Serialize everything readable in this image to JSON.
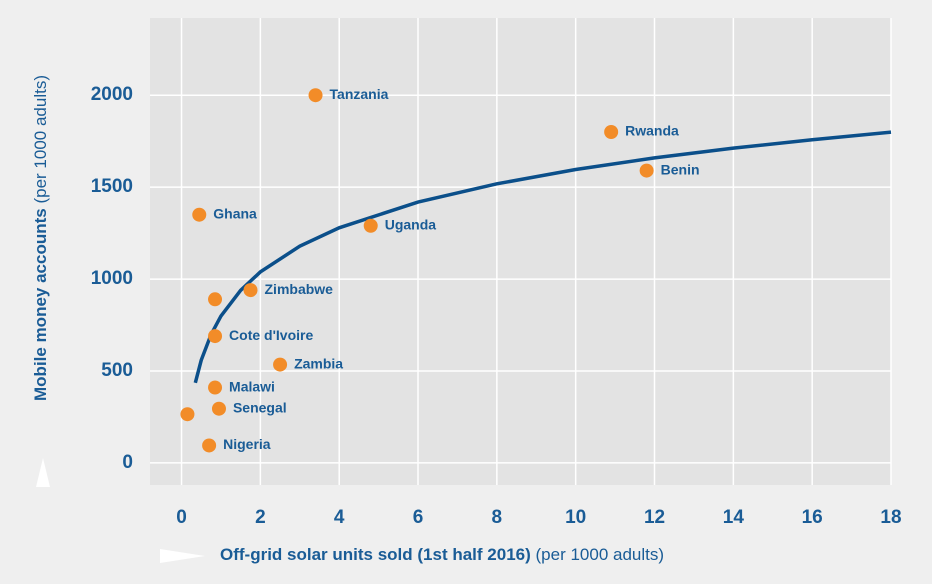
{
  "chart_data": {
    "type": "scatter",
    "x_label": "Off-grid solar units sold (1st half 2016)",
    "x_unit": "(per 1000 adults)",
    "y_label": "Mobile money accounts",
    "y_unit": "(per 1000 adults)",
    "labels": [
      "Tanzania",
      "Rwanda",
      "Benin",
      "Ghana",
      "Uganda",
      "Zimbabwe",
      null,
      "Cote d'Ivoire",
      "Zambia",
      "Malawi",
      "Senegal",
      null,
      "Nigeria"
    ],
    "x": [
      3.4,
      10.9,
      11.8,
      0.45,
      4.8,
      1.75,
      0.85,
      0.85,
      2.5,
      0.85,
      0.95,
      0.15,
      0.7
    ],
    "y": [
      2000,
      1800,
      1590,
      1350,
      1290,
      940,
      890,
      690,
      535,
      410,
      295,
      265,
      95
    ],
    "color": "#f28c28",
    "trend": {
      "color": "#0b4f8a",
      "x": [
        0.35,
        0.5,
        0.75,
        1,
        1.5,
        2,
        3,
        4,
        6,
        8,
        10,
        12,
        14,
        16,
        18
      ],
      "values": [
        436,
        559,
        699,
        799,
        939,
        1039,
        1179,
        1279,
        1419,
        1518,
        1596,
        1659,
        1712,
        1758,
        1799
      ]
    },
    "xlim": [
      -0.8,
      18
    ],
    "ylim": [
      -120,
      2420
    ],
    "xticks": [
      0,
      2,
      4,
      6,
      8,
      10,
      12,
      14,
      16,
      18
    ],
    "yticks": [
      0,
      500,
      1000,
      1500,
      2000
    ],
    "grid": true
  }
}
